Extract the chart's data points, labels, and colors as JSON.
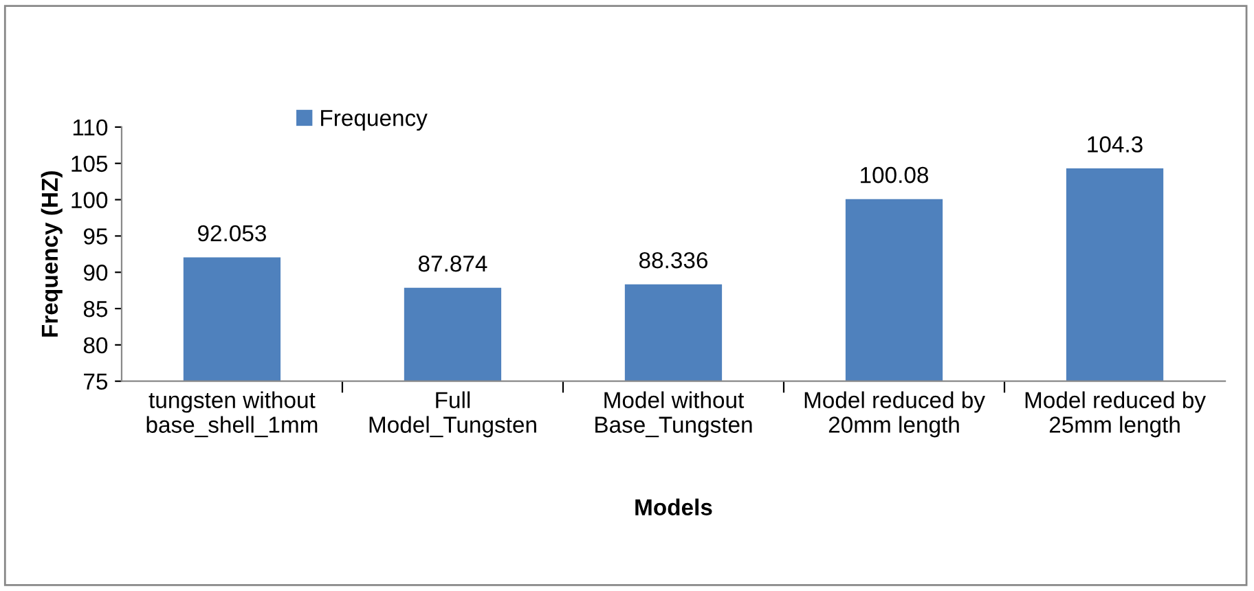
{
  "chart_data": {
    "type": "bar",
    "xlabel": "Models",
    "ylabel": "Frequency (HZ)",
    "categories": [
      "tungsten without\nbase_shell_1mm",
      "Full\nModel_Tungsten",
      "Model without\nBase_Tungsten",
      "Model reduced by\n20mm length",
      "Model reduced by\n25mm length"
    ],
    "series": [
      {
        "name": "Frequency",
        "color": "#4f81bd",
        "values": [
          92.053,
          87.874,
          88.336,
          100.08,
          104.3
        ]
      }
    ],
    "ylim": [
      75,
      110
    ],
    "yticks": [
      75,
      80,
      85,
      90,
      95,
      100,
      105,
      110
    ],
    "data_labels": true,
    "legend": "top left",
    "grid": false
  }
}
